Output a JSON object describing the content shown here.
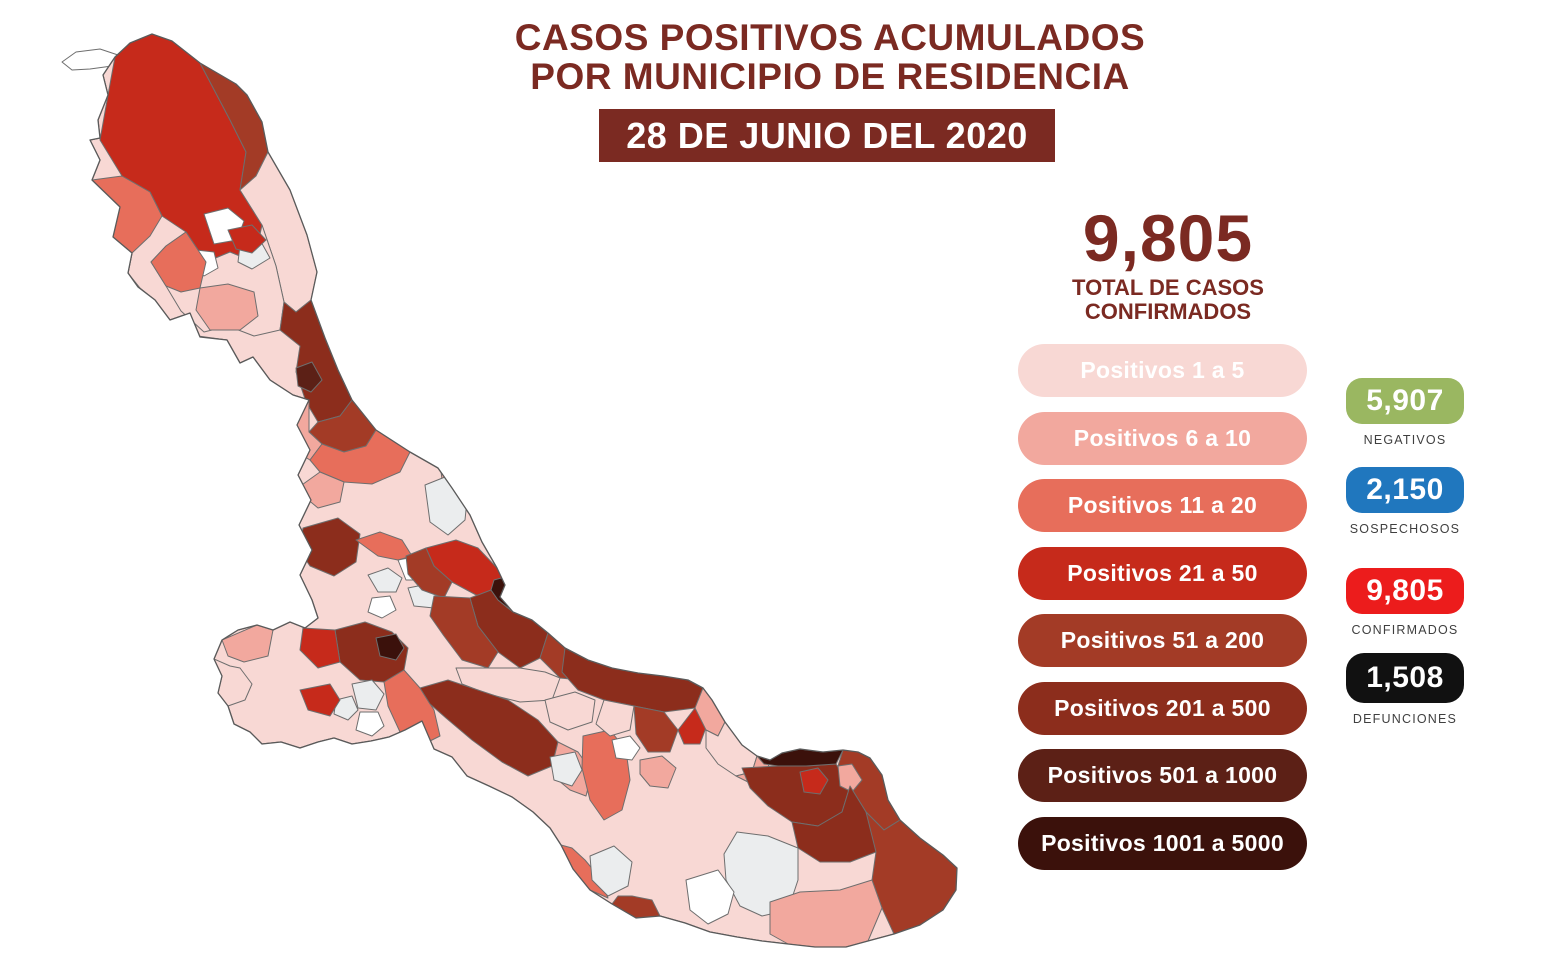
{
  "theme": {
    "maroon": "#7B2A22",
    "label_gray": "#3F3F3F",
    "background": "#FFFFFF"
  },
  "header": {
    "title_line1": "CASOS POSITIVOS ACUMULADOS",
    "title_line2": "POR MUNICIPIO DE RESIDENCIA",
    "date_banner": "28 DE JUNIO DEL 2020"
  },
  "total": {
    "value": "9,805",
    "label_line1": "TOTAL DE CASOS",
    "label_line2": "CONFIRMADOS"
  },
  "legend": {
    "items": [
      {
        "label": "Positivos 1 a 5",
        "color": "#F8D8D4"
      },
      {
        "label": "Positivos 6 a 10",
        "color": "#F2A89E"
      },
      {
        "label": "Positivos 11 a 20",
        "color": "#E76E5B"
      },
      {
        "label": "Positivos 21 a 50",
        "color": "#C62A1B"
      },
      {
        "label": "Positivos 51 a 200",
        "color": "#A33B26"
      },
      {
        "label": "Positivos 201 a 500",
        "color": "#8C2D1C"
      },
      {
        "label": "Positivos 501 a 1000",
        "color": "#5C2016"
      },
      {
        "label": "Positivos 1001 a 5000",
        "color": "#3B110B"
      }
    ]
  },
  "stats": [
    {
      "value": "5,907",
      "label": "NEGATIVOS",
      "color": "#9AB761"
    },
    {
      "value": "2,150",
      "label": "SOSPECHOSOS",
      "color": "#2077BE"
    },
    {
      "value": "9,805",
      "label": "CONFIRMADOS",
      "color": "#EC1C1C"
    },
    {
      "value": "1,508",
      "label": "DEFUNCIONES",
      "color": "#111111"
    }
  ],
  "map": {
    "palette": {
      "cat1": "#F8D8D4",
      "cat2": "#F2A89E",
      "cat3": "#E76E5B",
      "cat4": "#C62A1B",
      "cat5": "#A33B26",
      "cat6": "#8C2D1C",
      "cat7": "#5C2016",
      "cat8": "#3B110B",
      "zero": "#EBEDEE",
      "white": "#FFFFFF",
      "border": "#6E6E6E",
      "outline": "#5A5A5A"
    }
  }
}
